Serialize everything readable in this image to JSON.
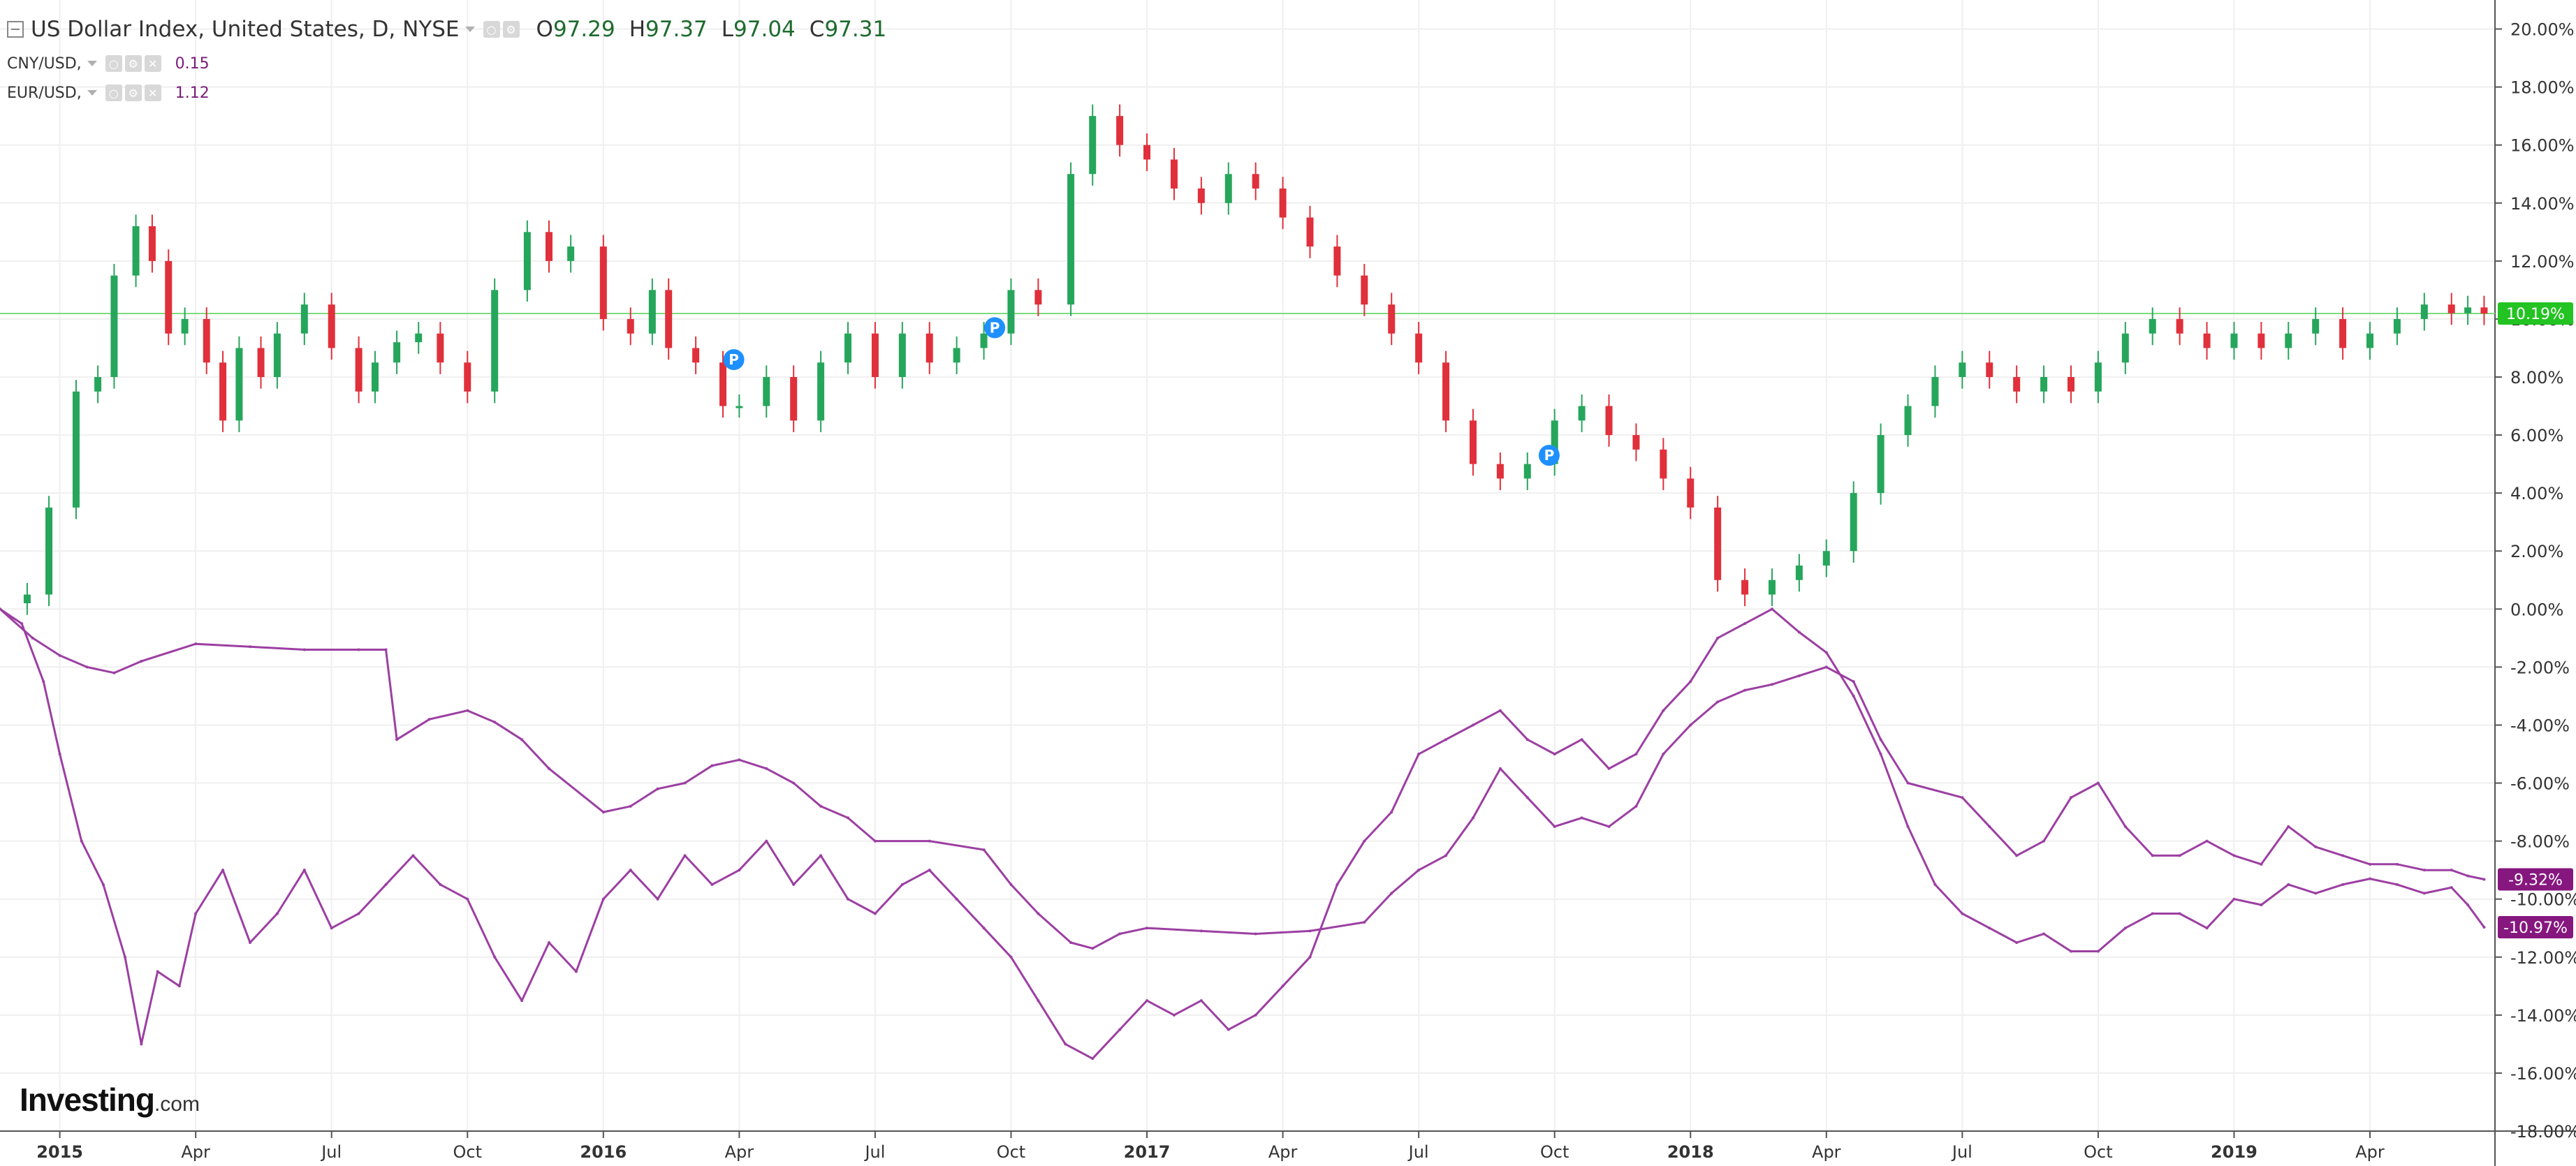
{
  "legend": {
    "main": {
      "title": "US Dollar Index, United States, D, NYSE",
      "o_label": "O",
      "o": "97.29",
      "h_label": "H",
      "h": "97.37",
      "l_label": "L",
      "l": "97.04",
      "c_label": "C",
      "c": "97.31"
    },
    "series": [
      {
        "name": "CNY/USD,",
        "value": "0.15"
      },
      {
        "name": "EUR/USD,",
        "value": "1.12"
      }
    ]
  },
  "logo": {
    "brand": "Investing",
    "suffix": ".com"
  },
  "colors": {
    "up": "#26a65b",
    "down": "#e0303b",
    "line": "#9c3fa2",
    "reference": "#7ddc7d",
    "label_green": "#22c322",
    "label_purple": "#86177f",
    "marker": "#1e90ff",
    "grid": "#efefef"
  },
  "chart_data": {
    "type": "line",
    "ylabel": "",
    "xlabel": "",
    "ylim": [
      -18,
      21
    ],
    "y_ticks": [
      "20.00%",
      "18.00%",
      "16.00%",
      "14.00%",
      "12.00%",
      "10.00%",
      "8.00%",
      "6.00%",
      "4.00%",
      "2.00%",
      "0.00%",
      "-2.00%",
      "-4.00%",
      "-6.00%",
      "-8.00%",
      "-10.00%",
      "-12.00%",
      "-14.00%",
      "-16.00%",
      "-18.00%"
    ],
    "y_tick_values": [
      20,
      18,
      16,
      14,
      12,
      10,
      8,
      6,
      4,
      2,
      0,
      -2,
      -4,
      -6,
      -8,
      -10,
      -12,
      -14,
      -16,
      -18
    ],
    "x_ticks": [
      {
        "label": "2015",
        "t": 2015.0,
        "bold": true
      },
      {
        "label": "Apr",
        "t": 2015.25
      },
      {
        "label": "Jul",
        "t": 2015.5
      },
      {
        "label": "Oct",
        "t": 2015.75
      },
      {
        "label": "2016",
        "t": 2016.0,
        "bold": true
      },
      {
        "label": "Apr",
        "t": 2016.25
      },
      {
        "label": "Jul",
        "t": 2016.5
      },
      {
        "label": "Oct",
        "t": 2016.75
      },
      {
        "label": "2017",
        "t": 2017.0,
        "bold": true
      },
      {
        "label": "Apr",
        "t": 2017.25
      },
      {
        "label": "Jul",
        "t": 2017.5
      },
      {
        "label": "Oct",
        "t": 2017.75
      },
      {
        "label": "2018",
        "t": 2018.0,
        "bold": true
      },
      {
        "label": "Apr",
        "t": 2018.25
      },
      {
        "label": "Jul",
        "t": 2018.5
      },
      {
        "label": "Oct",
        "t": 2018.75
      },
      {
        "label": "2019",
        "t": 2019.0,
        "bold": true
      },
      {
        "label": "Apr",
        "t": 2019.25
      }
    ],
    "x_range": [
      2014.89,
      2019.48
    ],
    "reference_line": {
      "value": 10.19,
      "label": "10.19%"
    },
    "series": [
      {
        "name": "US Dollar Index",
        "style": "candlestick",
        "t": [
          2014.89,
          2014.94,
          2014.98,
          2015.03,
          2015.07,
          2015.1,
          2015.14,
          2015.17,
          2015.2,
          2015.23,
          2015.27,
          2015.3,
          2015.33,
          2015.37,
          2015.4,
          2015.45,
          2015.5,
          2015.55,
          2015.58,
          2015.62,
          2015.66,
          2015.7,
          2015.75,
          2015.8,
          2015.86,
          2015.9,
          2015.94,
          2016.0,
          2016.05,
          2016.09,
          2016.12,
          2016.17,
          2016.22,
          2016.25,
          2016.3,
          2016.35,
          2016.4,
          2016.45,
          2016.5,
          2016.55,
          2016.6,
          2016.65,
          2016.7,
          2016.75,
          2016.8,
          2016.86,
          2016.9,
          2016.95,
          2017.0,
          2017.05,
          2017.1,
          2017.15,
          2017.2,
          2017.25,
          2017.3,
          2017.35,
          2017.4,
          2017.45,
          2017.5,
          2017.55,
          2017.6,
          2017.65,
          2017.7,
          2017.75,
          2017.8,
          2017.85,
          2017.9,
          2017.95,
          2018.0,
          2018.05,
          2018.1,
          2018.15,
          2018.2,
          2018.25,
          2018.3,
          2018.35,
          2018.4,
          2018.45,
          2018.5,
          2018.55,
          2018.6,
          2018.65,
          2018.7,
          2018.75,
          2018.8,
          2018.85,
          2018.9,
          2018.95,
          2019.0,
          2019.05,
          2019.1,
          2019.15,
          2019.2,
          2019.25,
          2019.3,
          2019.35,
          2019.4,
          2019.43,
          2019.46
        ],
        "values": [
          0.2,
          0.5,
          3.5,
          7.5,
          8.0,
          11.5,
          13.2,
          12.0,
          9.5,
          10.0,
          8.5,
          6.5,
          9.0,
          8.0,
          9.5,
          10.5,
          9.0,
          7.5,
          8.5,
          9.2,
          9.5,
          8.5,
          7.5,
          11.0,
          13.0,
          12.0,
          12.5,
          10.0,
          9.5,
          11.0,
          9.0,
          8.5,
          7.0,
          7.0,
          8.0,
          6.5,
          8.5,
          9.5,
          8.0,
          9.5,
          8.5,
          9.0,
          9.5,
          11.0,
          10.5,
          15.0,
          17.0,
          16.0,
          15.5,
          14.5,
          14.0,
          15.0,
          14.5,
          13.5,
          12.5,
          11.5,
          10.5,
          9.5,
          8.5,
          6.5,
          5.0,
          4.5,
          5.0,
          6.5,
          7.0,
          6.0,
          5.5,
          4.5,
          3.5,
          1.0,
          0.5,
          1.0,
          1.5,
          2.0,
          4.0,
          6.0,
          7.0,
          8.0,
          8.5,
          8.0,
          7.5,
          8.0,
          7.5,
          8.5,
          9.5,
          10.0,
          9.5,
          9.0,
          9.5,
          9.0,
          9.5,
          10.0,
          9.0,
          9.5,
          10.0,
          10.5,
          10.2,
          10.4,
          10.19
        ]
      },
      {
        "name": "CNY/USD",
        "style": "line",
        "last_label": "-9.32%",
        "t": [
          2014.89,
          2014.95,
          2015.0,
          2015.05,
          2015.1,
          2015.15,
          2015.25,
          2015.35,
          2015.45,
          2015.55,
          2015.6,
          2015.62,
          2015.68,
          2015.75,
          2015.8,
          2015.85,
          2015.9,
          2016.0,
          2016.05,
          2016.1,
          2016.15,
          2016.2,
          2016.25,
          2016.3,
          2016.35,
          2016.4,
          2016.45,
          2016.5,
          2016.6,
          2016.7,
          2016.75,
          2016.8,
          2016.86,
          2016.9,
          2016.95,
          2017.0,
          2017.1,
          2017.2,
          2017.3,
          2017.4,
          2017.45,
          2017.5,
          2017.55,
          2017.6,
          2017.65,
          2017.7,
          2017.75,
          2017.8,
          2017.85,
          2017.9,
          2017.95,
          2018.0,
          2018.05,
          2018.1,
          2018.15,
          2018.2,
          2018.25,
          2018.3,
          2018.35,
          2018.4,
          2018.5,
          2018.55,
          2018.6,
          2018.65,
          2018.7,
          2018.75,
          2018.8,
          2018.85,
          2018.9,
          2018.95,
          2019.0,
          2019.05,
          2019.1,
          2019.15,
          2019.2,
          2019.25,
          2019.3,
          2019.35,
          2019.4,
          2019.43,
          2019.46
        ],
        "values": [
          0.0,
          -1.0,
          -1.6,
          -2.0,
          -2.2,
          -1.8,
          -1.2,
          -1.3,
          -1.4,
          -1.4,
          -1.4,
          -4.5,
          -3.8,
          -3.5,
          -3.9,
          -4.5,
          -5.5,
          -7.0,
          -6.8,
          -6.2,
          -6.0,
          -5.4,
          -5.2,
          -5.5,
          -6.0,
          -6.8,
          -7.2,
          -8.0,
          -8.0,
          -8.3,
          -9.5,
          -10.5,
          -11.5,
          -11.7,
          -11.2,
          -11.0,
          -11.1,
          -11.2,
          -11.1,
          -10.8,
          -9.8,
          -9.0,
          -8.5,
          -7.2,
          -5.5,
          -6.5,
          -7.5,
          -7.2,
          -7.5,
          -6.8,
          -5.0,
          -4.0,
          -3.2,
          -2.8,
          -2.6,
          -2.3,
          -2.0,
          -2.5,
          -4.5,
          -6.0,
          -6.5,
          -7.5,
          -8.5,
          -8.0,
          -6.5,
          -6.0,
          -7.5,
          -8.5,
          -8.5,
          -8.0,
          -8.5,
          -8.8,
          -7.5,
          -8.2,
          -8.5,
          -8.8,
          -8.8,
          -9.0,
          -9.0,
          -9.2,
          -9.32
        ]
      },
      {
        "name": "EUR/USD",
        "style": "line",
        "last_label": "-10.97%",
        "t": [
          2014.89,
          2014.93,
          2014.97,
          2015.0,
          2015.04,
          2015.08,
          2015.12,
          2015.15,
          2015.18,
          2015.22,
          2015.25,
          2015.3,
          2015.35,
          2015.4,
          2015.45,
          2015.5,
          2015.55,
          2015.6,
          2015.65,
          2015.7,
          2015.75,
          2015.8,
          2015.85,
          2015.9,
          2015.95,
          2016.0,
          2016.05,
          2016.1,
          2016.15,
          2016.2,
          2016.25,
          2016.3,
          2016.35,
          2016.4,
          2016.45,
          2016.5,
          2016.55,
          2016.6,
          2016.65,
          2016.7,
          2016.75,
          2016.8,
          2016.85,
          2016.9,
          2016.95,
          2017.0,
          2017.05,
          2017.1,
          2017.15,
          2017.2,
          2017.25,
          2017.3,
          2017.35,
          2017.4,
          2017.45,
          2017.5,
          2017.55,
          2017.6,
          2017.65,
          2017.7,
          2017.75,
          2017.8,
          2017.85,
          2017.9,
          2017.95,
          2018.0,
          2018.05,
          2018.1,
          2018.15,
          2018.2,
          2018.25,
          2018.3,
          2018.35,
          2018.4,
          2018.45,
          2018.5,
          2018.55,
          2018.6,
          2018.65,
          2018.7,
          2018.75,
          2018.8,
          2018.85,
          2018.9,
          2018.95,
          2019.0,
          2019.05,
          2019.1,
          2019.15,
          2019.2,
          2019.25,
          2019.3,
          2019.35,
          2019.4,
          2019.43,
          2019.46
        ],
        "values": [
          0.0,
          -0.5,
          -2.5,
          -5.0,
          -8.0,
          -9.5,
          -12.0,
          -15.0,
          -12.5,
          -13.0,
          -10.5,
          -9.0,
          -11.5,
          -10.5,
          -9.0,
          -11.0,
          -10.5,
          -9.5,
          -8.5,
          -9.5,
          -10.0,
          -12.0,
          -13.5,
          -11.5,
          -12.5,
          -10.0,
          -9.0,
          -10.0,
          -8.5,
          -9.5,
          -9.0,
          -8.0,
          -9.5,
          -8.5,
          -10.0,
          -10.5,
          -9.5,
          -9.0,
          -10.0,
          -11.0,
          -12.0,
          -13.5,
          -15.0,
          -15.5,
          -14.5,
          -13.5,
          -14.0,
          -13.5,
          -14.5,
          -14.0,
          -13.0,
          -12.0,
          -9.5,
          -8.0,
          -7.0,
          -5.0,
          -4.5,
          -4.0,
          -3.5,
          -4.5,
          -5.0,
          -4.5,
          -5.5,
          -5.0,
          -3.5,
          -2.5,
          -1.0,
          -0.5,
          0.0,
          -0.8,
          -1.5,
          -3.0,
          -5.0,
          -7.5,
          -9.5,
          -10.5,
          -11.0,
          -11.5,
          -11.2,
          -11.8,
          -11.8,
          -11.0,
          -10.5,
          -10.5,
          -11.0,
          -10.0,
          -10.2,
          -9.5,
          -9.8,
          -9.5,
          -9.3,
          -9.5,
          -9.8,
          -9.6,
          -10.2,
          -10.97
        ]
      }
    ],
    "markers": [
      {
        "label": "P",
        "t": 2016.24,
        "y": 8.6
      },
      {
        "label": "P",
        "t": 2016.72,
        "y": 9.7
      },
      {
        "label": "P",
        "t": 2017.74,
        "y": 5.3
      }
    ]
  }
}
